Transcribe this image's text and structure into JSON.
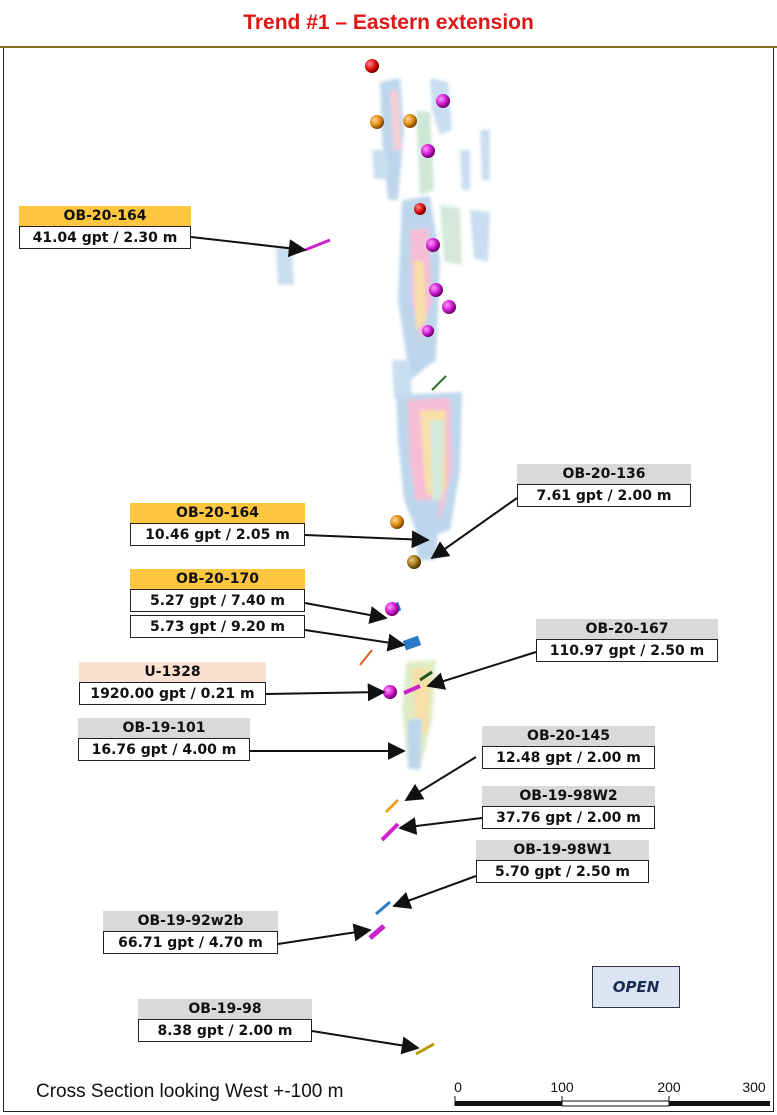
{
  "title": "Trend #1 – Eastern extension",
  "caption": "Cross Section looking West +-100 m",
  "open_label": "OPEN",
  "scale_bar": {
    "ticks": [
      "0",
      "100",
      "200",
      "300"
    ]
  },
  "colors": {
    "title": "#e01616",
    "gold_header": "#ffc640",
    "gray_header": "#d9d9d9",
    "peach_header": "#fbe1d1",
    "open_fill": "#dbe4f3"
  },
  "callouts": [
    {
      "id": "c1",
      "hole": "OB-20-164",
      "header": "gold",
      "values": [
        "41.04 gpt / 2.30 m"
      ]
    },
    {
      "id": "c2",
      "hole": "OB-20-136",
      "header": "gray",
      "values": [
        "7.61 gpt / 2.00 m"
      ]
    },
    {
      "id": "c3",
      "hole": "OB-20-164",
      "header": "gold",
      "values": [
        "10.46 gpt / 2.05 m"
      ]
    },
    {
      "id": "c4",
      "hole": "OB-20-170",
      "header": "gold",
      "values": [
        "5.27 gpt / 7.40 m",
        "5.73 gpt / 9.20 m"
      ]
    },
    {
      "id": "c5",
      "hole": "OB-20-167",
      "header": "gray",
      "values": [
        "110.97 gpt / 2.50 m"
      ]
    },
    {
      "id": "c6",
      "hole": "U-1328",
      "header": "peach",
      "values": [
        "1920.00 gpt / 0.21 m"
      ]
    },
    {
      "id": "c7",
      "hole": "OB-19-101",
      "header": "gray",
      "values": [
        "16.76 gpt / 4.00 m"
      ]
    },
    {
      "id": "c8",
      "hole": "OB-20-145",
      "header": "gray",
      "values": [
        "12.48 gpt / 2.00 m"
      ]
    },
    {
      "id": "c9",
      "hole": "OB-19-98W2",
      "header": "gray",
      "values": [
        "37.76 gpt / 2.00 m"
      ]
    },
    {
      "id": "c10",
      "hole": "OB-19-98W1",
      "header": "gray",
      "values": [
        "5.70 gpt / 2.50 m"
      ]
    },
    {
      "id": "c11",
      "hole": "OB-19-92w2b",
      "header": "gray",
      "values": [
        "66.71 gpt / 4.70 m"
      ]
    },
    {
      "id": "c12",
      "hole": "OB-19-98",
      "header": "gray",
      "values": [
        "8.38 gpt / 2.00 m"
      ]
    }
  ]
}
